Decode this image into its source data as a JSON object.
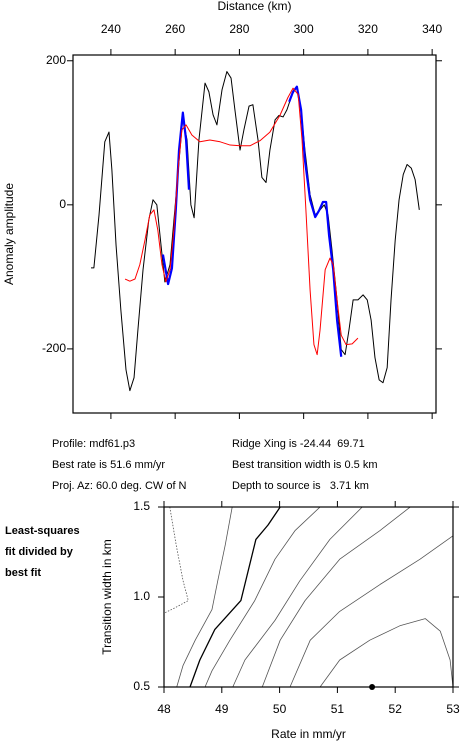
{
  "chart_data": [
    {
      "type": "line",
      "x_label": "Distance (km)",
      "y_label": "Anomaly amplitude",
      "xlim": [
        228.2,
        341.2
      ],
      "ylim": [
        -289,
        208
      ],
      "xticks": [
        240,
        260,
        280,
        300,
        320,
        340
      ],
      "yticks": [
        -200,
        0,
        200
      ],
      "series": [
        {
          "color": "#000000",
          "line_width": 1,
          "x": [
            233.8,
            234.7,
            236.3,
            238.1,
            239.4,
            240.3,
            241.6,
            243.1,
            244.7,
            245.9,
            247.2,
            248.4,
            250.0,
            251.8,
            253.1,
            254.3,
            255.6,
            256.8,
            258.4,
            259.9,
            261.5,
            262.4,
            263.7,
            264.9,
            265.9,
            267.4,
            269.3,
            270.5,
            271.8,
            273.0,
            274.6,
            276.1,
            277.4,
            278.6,
            280.2,
            281.4,
            283.0,
            284.2,
            285.8,
            287.0,
            288.3,
            289.5,
            291.1,
            292.3,
            293.6,
            294.8,
            296.4,
            297.9,
            299.2,
            300.4,
            302.0,
            303.6,
            305.1,
            306.4,
            307.6,
            308.8,
            310.4,
            311.7,
            312.9,
            314.1,
            315.4,
            316.9,
            318.5,
            319.8,
            321.0,
            322.2,
            323.5,
            324.7,
            326.0,
            327.2,
            328.5,
            329.7,
            331.0,
            332.2,
            333.5,
            334.7,
            336.0
          ],
          "values": [
            -87.5,
            -87.5,
            -14,
            87.5,
            101,
            49,
            -56,
            -146,
            -229,
            -258,
            -240,
            -174,
            -90,
            -21,
            7,
            0,
            -56,
            -107,
            -83,
            -7,
            76,
            121,
            90,
            0,
            -18,
            90,
            169,
            157,
            125,
            111,
            160,
            185,
            176,
            132,
            76,
            104,
            137,
            139,
            90,
            38,
            31,
            76,
            118,
            124,
            122,
            132,
            153,
            164,
            132,
            76,
            14,
            -14,
            -7,
            0,
            -14,
            -62,
            -132,
            -201,
            -208,
            -174,
            -132,
            -132,
            -125,
            -132,
            -160,
            -212,
            -243,
            -247,
            -226,
            -132,
            -49,
            7,
            42,
            56,
            51,
            35,
            -7
          ]
        },
        {
          "color": "#0000ff",
          "line_width": 2.2,
          "x": [
            256.2,
            257.8,
            259.0,
            260.2,
            261.2,
            262.4,
            263.4,
            264.3,
            280,
            295.5,
            296.7,
            297.9,
            299.2,
            300.4,
            302.0,
            303.6,
            304.8,
            306.0,
            307.0,
            307.9,
            309.2,
            310.4,
            311.7
          ],
          "values": [
            -69,
            -110,
            -88,
            -7,
            76,
            128,
            90,
            21,
            null,
            143,
            157,
            164,
            132,
            62,
            7,
            -17,
            -8,
            4,
            4,
            -42,
            -90,
            -160,
            -211
          ]
        },
        {
          "color": "#ff0000",
          "line_width": 1,
          "x": [
            244.4,
            245.9,
            247.5,
            249.0,
            250.6,
            252.1,
            253.4,
            254.6,
            255.9,
            257.1,
            258.4,
            259.6,
            260.9,
            262.1,
            263.4,
            265.2,
            267.7,
            270.8,
            274.0,
            277.1,
            280.2,
            283.3,
            286.4,
            289.5,
            292.6,
            295.1,
            296.7,
            298.3,
            299.5,
            300.7,
            302.0,
            303.2,
            304.2,
            305.1,
            306.7,
            308.2,
            309.2,
            310.4,
            311.7,
            313.2,
            315.1,
            316.9
          ],
          "values": [
            -103,
            -106,
            -103,
            -83,
            -49,
            -14,
            -7,
            -35,
            -83,
            -107,
            -90,
            -35,
            49,
            104,
            111,
            97,
            87.5,
            90,
            87.5,
            83,
            82,
            82,
            89,
            101,
            124,
            149,
            162,
            153,
            90,
            -7,
            -118,
            -194,
            -208,
            -174,
            -90,
            -74,
            -83,
            -132,
            -181,
            -194,
            -193,
            -185
          ]
        }
      ]
    },
    {
      "type": "contour",
      "x_label": "Rate in mm/yr",
      "y_label": "Transition width in km",
      "xlim": [
        48,
        53
      ],
      "ylim": [
        0.5,
        1.5
      ],
      "xticks": [
        48,
        49,
        50,
        51,
        52,
        53
      ],
      "yticks": [
        0.5,
        {
          "value": 1,
          "label": "1.0"
        },
        1.5
      ],
      "series": [
        {
          "color": "#555555",
          "line_width": 0.8,
          "style": "dotted",
          "x": [
            48.1,
            48.21,
            48.33,
            48.42,
            48.19,
            48
          ],
          "values": [
            1.5,
            1.29,
            1.09,
            0.98,
            0.94,
            0.91
          ]
        },
        {
          "color": "#555555",
          "line_width": 0.8,
          "x": [
            49.18,
            49.06,
            48.93,
            48.83,
            48.54,
            48.33,
            48.22
          ],
          "values": [
            1.5,
            1.29,
            1.09,
            0.93,
            0.76,
            0.62,
            0.5
          ]
        },
        {
          "color": "#000000",
          "line_width": 1.3,
          "x": [
            50.01,
            49.8,
            49.59,
            49.33,
            48.88,
            48.62,
            48.45
          ],
          "values": [
            1.5,
            1.4,
            1.32,
            0.98,
            0.82,
            0.65,
            0.5
          ]
        },
        {
          "color": "#555555",
          "line_width": 0.8,
          "x": [
            50.7,
            50.27,
            49.92,
            49.57,
            49.14,
            48.83,
            48.71
          ],
          "values": [
            1.5,
            1.37,
            1.21,
            0.98,
            0.76,
            0.59,
            0.5
          ]
        },
        {
          "color": "#555555",
          "line_width": 0.8,
          "x": [
            51.43,
            50.87,
            50.35,
            49.92,
            49.4,
            49.19
          ],
          "values": [
            1.5,
            1.32,
            1.09,
            0.87,
            0.65,
            0.5
          ]
        },
        {
          "color": "#555555",
          "line_width": 0.8,
          "x": [
            52.26,
            51.74,
            51.04,
            50.44,
            50.01,
            49.7
          ],
          "values": [
            1.5,
            1.37,
            1.21,
            0.98,
            0.76,
            0.5
          ]
        },
        {
          "color": "#555555",
          "line_width": 0.8,
          "x": [
            53,
            52.43,
            51.74,
            51.04,
            50.53,
            50.18
          ],
          "values": [
            1.34,
            1.21,
            1.07,
            0.92,
            0.76,
            0.5
          ]
        },
        {
          "color": "#555555",
          "line_width": 0.8,
          "x": [
            50.7,
            51.04,
            51.56,
            52.08,
            52.52,
            52.78,
            52.95,
            53
          ],
          "values": [
            0.5,
            0.65,
            0.76,
            0.84,
            0.88,
            0.81,
            0.65,
            0.5
          ]
        }
      ],
      "best_fit": {
        "color": "#000000",
        "x": [
          51.6
        ],
        "values": [
          0.5
        ]
      }
    }
  ],
  "profile_info": [
    "Profile: mdf61.p3",
    "Ridge Xing is -24.44  69.71",
    "Best rate is 51.6 mm/yr",
    "Best transition width is 0.5 km",
    "Proj. Az: 60.0 deg. CW of N",
    "Depth to source is   3.71 km"
  ],
  "side_note": [
    "Least-squares",
    "fit divided by",
    "best fit"
  ]
}
